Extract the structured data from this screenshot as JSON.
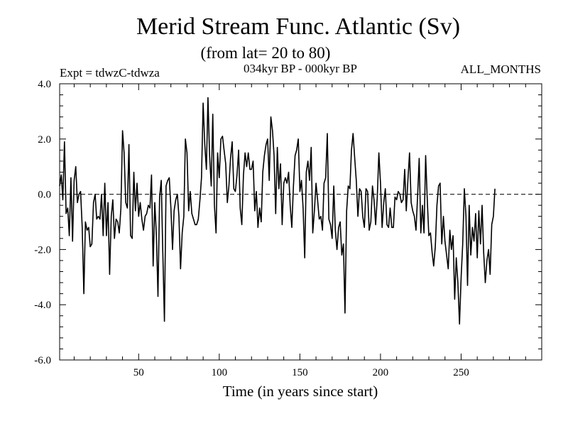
{
  "chart_data": {
    "type": "line",
    "title": "Merid Stream Func. Atlantic (Sv)",
    "subtitle": "(from lat= 20 to 80)",
    "annotations": {
      "experiment": "Expt = tdwzC-tdwza",
      "period": "034kyr BP - 000kyr BP",
      "months": "ALL_MONTHS"
    },
    "xlabel": "Time (in years since start)",
    "ylabel": "",
    "xlim": [
      1,
      300
    ],
    "ylim": [
      -6.0,
      4.0
    ],
    "x_ticks": [
      50,
      100,
      150,
      200,
      250
    ],
    "y_ticks": [
      -6.0,
      -4.0,
      -2.0,
      0.0,
      2.0,
      4.0
    ],
    "y_tick_labels": [
      "-6.0",
      "-4.0",
      "-2.0",
      "0.0",
      "2.0",
      "4.0"
    ],
    "zero_line": true,
    "grid": false,
    "series": [
      {
        "x_start": 1,
        "x_step": 1,
        "values": [
          0.3,
          0.7,
          -0.2,
          1.9,
          -0.7,
          -0.5,
          -1.5,
          0.6,
          -1.7,
          0.5,
          1.0,
          -0.3,
          0.0,
          0.1,
          -1.2,
          -3.6,
          -1.0,
          -1.3,
          -1.2,
          -1.9,
          -1.8,
          -0.3,
          0.0,
          -0.9,
          -0.8,
          -0.9,
          0.0,
          -1.5,
          0.4,
          -1.5,
          -0.3,
          -2.9,
          -0.8,
          -0.2,
          -1.6,
          -0.9,
          -1.0,
          -1.4,
          -0.5,
          2.3,
          1.5,
          -0.3,
          -0.5,
          1.8,
          -1.5,
          -1.6,
          0.8,
          -0.6,
          0.4,
          -0.8,
          -0.3,
          -0.9,
          -1.3,
          -0.8,
          -0.7,
          -0.4,
          -0.5,
          0.7,
          -2.6,
          -0.3,
          -1.5,
          -3.7,
          -0.1,
          0.5,
          -2.1,
          -4.6,
          0.3,
          0.5,
          0.6,
          -0.5,
          -2.0,
          -0.6,
          -0.2,
          0.0,
          -0.8,
          -2.7,
          -1.4,
          -0.8,
          2.0,
          1.5,
          -0.6,
          0.1,
          -0.7,
          -0.9,
          -1.1,
          -1.1,
          -0.9,
          -0.2,
          0.6,
          3.3,
          1.8,
          0.9,
          3.5,
          1.4,
          0.3,
          2.9,
          -0.4,
          -1.4,
          1.5,
          0.6,
          2.0,
          2.1,
          1.6,
          1.1,
          -0.3,
          0.3,
          1.3,
          1.9,
          0.2,
          0.1,
          0.7,
          1.6,
          -0.5,
          -1.1,
          0.7,
          1.5,
          1.0,
          1.5,
          0.9,
          0.9,
          1.2,
          -0.6,
          0.1,
          -1.2,
          -0.5,
          -1.0,
          0.8,
          1.4,
          1.8,
          2.0,
          0.5,
          2.8,
          2.3,
          1.4,
          -0.7,
          1.7,
          0.2,
          1.1,
          -1.1,
          0.4,
          0.6,
          0.4,
          0.8,
          -0.4,
          -1.2,
          0.3,
          1.4,
          1.6,
          2.0,
          0.1,
          0.5,
          -0.5,
          -2.3,
          0.8,
          1.2,
          0.5,
          1.7,
          -1.4,
          -0.6,
          0.4,
          -0.2,
          -0.9,
          -0.8,
          -1.3,
          0.4,
          0.6,
          2.2,
          -0.9,
          -1.1,
          -1.6,
          0.3,
          -1.3,
          -2.0,
          -1.2,
          -1.0,
          -2.2,
          -1.8,
          -4.3,
          -0.6,
          0.3,
          0.2,
          1.6,
          2.2,
          1.3,
          0.5,
          -0.8,
          0.2,
          0.1,
          -0.8,
          -1.2,
          0.2,
          0.1,
          -1.3,
          -1.0,
          0.3,
          -0.2,
          -1.1,
          -0.1,
          1.5,
          0.4,
          -1.2,
          -0.3,
          0.2,
          -1.1,
          -1.2,
          -0.5,
          -1.2,
          -1.2,
          -0.1,
          -0.2,
          0.1,
          0.0,
          -0.3,
          -0.2,
          0.9,
          -0.6,
          0.5,
          1.5,
          -0.3,
          -0.6,
          -0.8,
          -1.3,
          -0.1,
          1.3,
          -1.4,
          -0.4,
          -1.4,
          1.4,
          -0.2,
          -1.5,
          -1.4,
          -2.1,
          -2.6,
          -1.9,
          -0.4,
          0.3,
          0.4,
          -1.8,
          -0.8,
          -1.7,
          -2.2,
          -2.7,
          -1.3,
          -2.0,
          -1.5,
          -3.8,
          -2.3,
          -3.2,
          -4.7,
          -3.0,
          -1.8,
          0.2,
          -0.8,
          -3.3,
          -0.4,
          -2.2,
          -1.2,
          -1.7,
          -0.7,
          -2.3,
          -0.6,
          -1.8,
          -0.4,
          -2.1,
          -3.2,
          -2.4,
          -2.0,
          -2.9,
          -1.1,
          -0.8,
          0.2
        ]
      }
    ]
  }
}
